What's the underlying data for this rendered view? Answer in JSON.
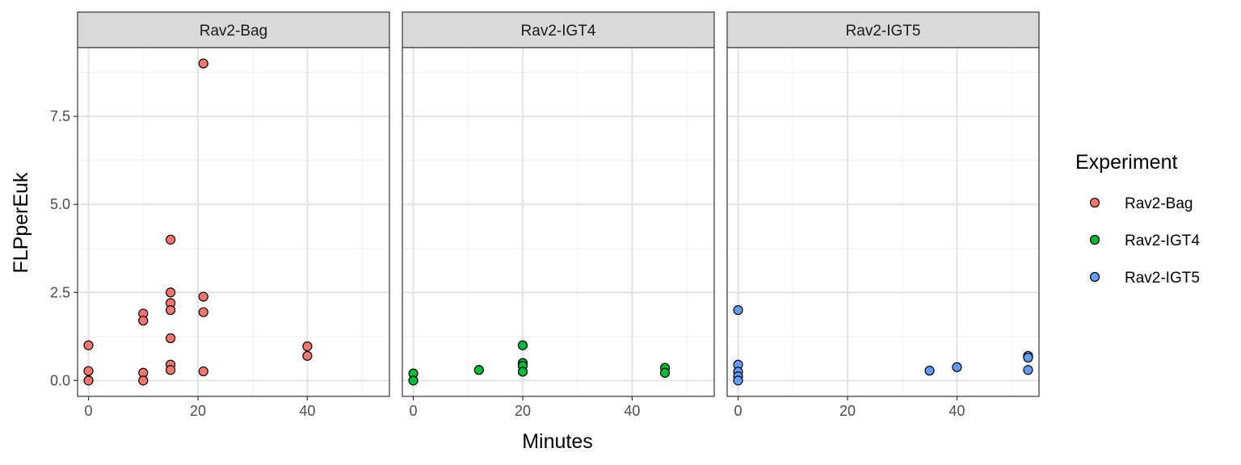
{
  "chart_data": {
    "type": "scatter",
    "xlabel": "Minutes",
    "ylabel": "FLPperEuk",
    "xlim": [
      -2,
      55
    ],
    "ylim": [
      -0.45,
      9.45
    ],
    "x_ticks": [
      0,
      20,
      40
    ],
    "x_tick_labels": [
      "0",
      "20",
      "40"
    ],
    "y_ticks": [
      0,
      2.5,
      5,
      7.5
    ],
    "y_tick_labels": [
      "0.0",
      "2.5",
      "5.0",
      "7.5"
    ],
    "grid": true,
    "legend": {
      "title": "Experiment",
      "position": "right",
      "entries": [
        {
          "label": "Rav2-Bag",
          "color": "#F8766D"
        },
        {
          "label": "Rav2-IGT4",
          "color": "#00BA38"
        },
        {
          "label": "Rav2-IGT5",
          "color": "#619CFF"
        }
      ]
    },
    "panels": [
      {
        "strip": "Rav2-Bag",
        "color": "#F8766D",
        "x": [
          0,
          0,
          0,
          10,
          10,
          10,
          10,
          15,
          15,
          15,
          15,
          15,
          15,
          15,
          21,
          21,
          21,
          21,
          40,
          40
        ],
        "y": [
          1.0,
          0.27,
          0.0,
          1.9,
          1.7,
          0.22,
          0.0,
          4.0,
          2.5,
          2.2,
          2.0,
          1.2,
          0.45,
          0.3,
          9.0,
          2.38,
          1.94,
          0.26,
          0.97,
          0.7
        ]
      },
      {
        "strip": "Rav2-IGT4",
        "color": "#00BA38",
        "x": [
          0,
          0,
          12,
          20,
          20,
          20,
          20,
          46,
          46
        ],
        "y": [
          0.2,
          0.0,
          0.3,
          1.0,
          0.5,
          0.42,
          0.25,
          0.36,
          0.22
        ]
      },
      {
        "strip": "Rav2-IGT5",
        "color": "#619CFF",
        "x": [
          0,
          0,
          0,
          0,
          0,
          35,
          40,
          53,
          53,
          53
        ],
        "y": [
          2.0,
          0.45,
          0.25,
          0.12,
          0.0,
          0.28,
          0.38,
          0.7,
          0.65,
          0.3
        ]
      }
    ]
  }
}
